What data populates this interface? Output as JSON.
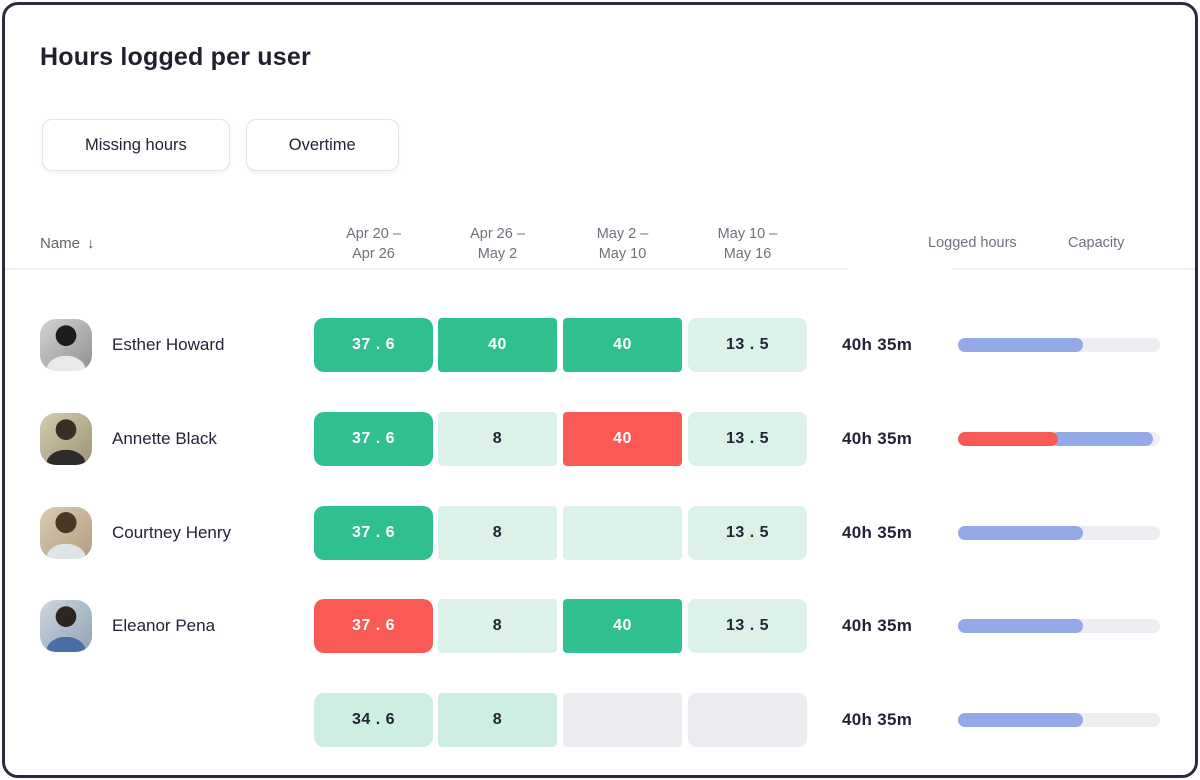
{
  "card": {
    "title": "Hours logged per user"
  },
  "filters": [
    {
      "label": "Missing hours"
    },
    {
      "label": "Overtime"
    }
  ],
  "table": {
    "name_header": "Name",
    "sort_icon": "↓",
    "week_headers": [
      {
        "line1": "Apr 20 –",
        "line2": "Apr 26"
      },
      {
        "line1": "Apr 26 –",
        "line2": "May 2"
      },
      {
        "line1": "May 2 –",
        "line2": "May 10"
      },
      {
        "line1": "May 10 –",
        "line2": "May 16"
      }
    ],
    "logged_hours_header": "Logged hours",
    "capacity_header": "Capacity",
    "rows": [
      {
        "name": "Esther Howard",
        "cells": [
          {
            "value": "37 . 6",
            "variant": "green"
          },
          {
            "value": "40",
            "variant": "green"
          },
          {
            "value": "40",
            "variant": "green"
          },
          {
            "value": "13 . 5",
            "variant": "pale"
          }
        ],
        "logged": "40h 35m",
        "capacity": {
          "segments": [
            {
              "color": "blue",
              "pct": 62
            }
          ]
        }
      },
      {
        "name": "Annette Black",
        "cells": [
          {
            "value": "37 . 6",
            "variant": "green"
          },
          {
            "value": "8",
            "variant": "pale"
          },
          {
            "value": "40",
            "variant": "red"
          },
          {
            "value": "13 . 5",
            "variant": "pale"
          }
        ],
        "logged": "40h 35m",
        "capacity": {
          "segments": [
            {
              "color": "red",
              "pct": 49.5
            },
            {
              "color": "blue",
              "pct": 50.5
            }
          ]
        }
      },
      {
        "name": "Courtney Henry",
        "cells": [
          {
            "value": "37 . 6",
            "variant": "green"
          },
          {
            "value": "8",
            "variant": "pale"
          },
          {
            "value": "",
            "variant": "pale"
          },
          {
            "value": "13 . 5",
            "variant": "pale"
          }
        ],
        "logged": "40h 35m",
        "capacity": {
          "segments": [
            {
              "color": "blue",
              "pct": 62
            }
          ]
        }
      },
      {
        "name": "Eleanor Pena",
        "cells": [
          {
            "value": "37 . 6",
            "variant": "red"
          },
          {
            "value": "8",
            "variant": "pale"
          },
          {
            "value": "40",
            "variant": "green"
          },
          {
            "value": "13 . 5",
            "variant": "pale"
          }
        ],
        "logged": "40h 35m",
        "capacity": {
          "segments": [
            {
              "color": "blue",
              "pct": 62
            }
          ]
        }
      },
      {
        "name": "",
        "cells": [
          {
            "value": "34 . 6",
            "variant": "mint"
          },
          {
            "value": "8",
            "variant": "mint"
          },
          {
            "value": "",
            "variant": "gray"
          },
          {
            "value": "",
            "variant": "gray"
          }
        ],
        "logged": "40h 35m",
        "capacity": {
          "segments": [
            {
              "color": "blue",
              "pct": 62
            }
          ]
        }
      }
    ]
  },
  "colors": {
    "green": "#2fc08d",
    "pale": "#dcf1e8",
    "mint": "#cdeee0",
    "red": "#fa5a55",
    "gray": "#ecebef",
    "blue": "#94a9e8",
    "track": "#ededf2",
    "card_border": "#2b2b40",
    "text_dark": "#232338",
    "text_gray": "#70707e"
  }
}
